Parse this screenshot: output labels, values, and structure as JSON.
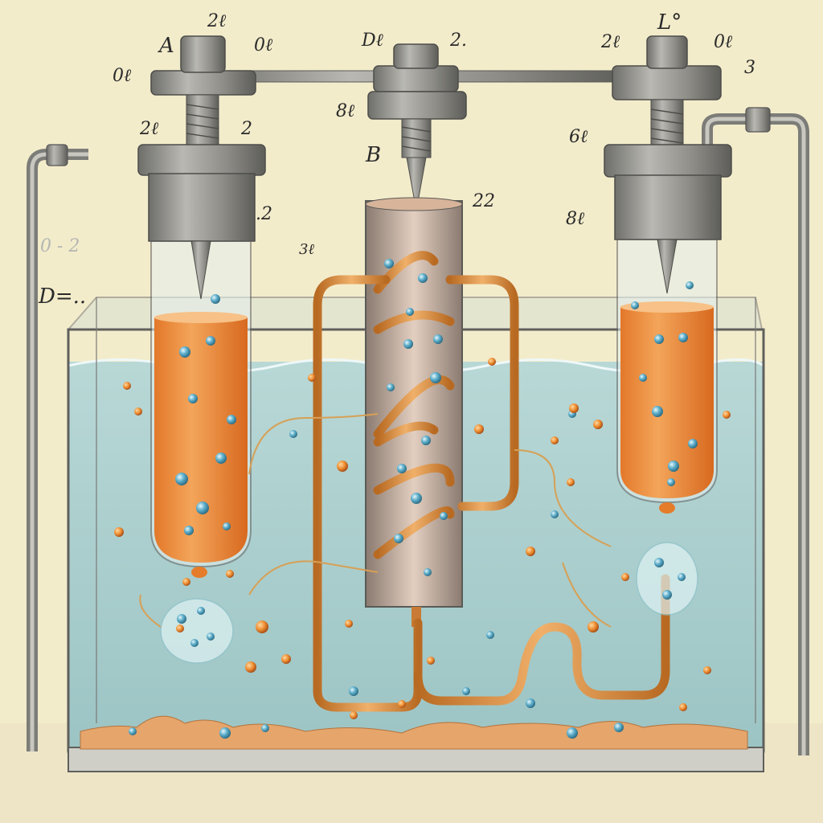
{
  "labels": {
    "a": "A",
    "b": "B",
    "d_left": "D=..",
    "lp": "L°",
    "top_2b_left": "2ℓ",
    "top_0b_left_a": "0ℓ",
    "top_0b_left_b": "0ℓ",
    "top_db": "Dℓ",
    "top_2": "2.",
    "top_8b": "8ℓ",
    "top_2b_right": "2ℓ",
    "top_0b_right": "0ℓ",
    "top_3": "3",
    "mid_2b": "2ℓ",
    "mid_2": "2",
    "left_2": ".2",
    "faint_02": "0 - 2",
    "center_3b": "3ℓ",
    "center_22": "22",
    "right_6b": "6ℓ",
    "right_8b": "8ℓ"
  },
  "colors": {
    "paper": "#f3eccb",
    "water": "#a8cfcf",
    "orange_liquid": "#e98a3a",
    "copper": "#d98a3c",
    "metal": "#8c8c88",
    "bubble_blue": "#5aa7c4"
  }
}
